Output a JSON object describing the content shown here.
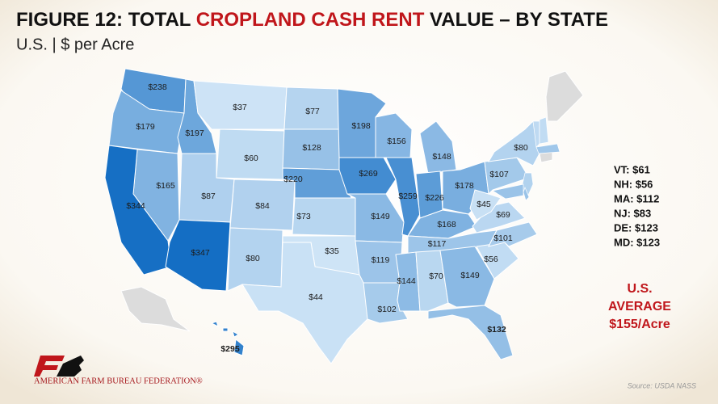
{
  "header": {
    "title_start": "FIGURE 12: TOTAL",
    "title_highlight": "CROPLAND CASH RENT",
    "title_end": "VALUE – BY STATE",
    "subtitle": "U.S. | $ per Acre"
  },
  "states": [
    {
      "value": 238,
      "label": "$238"
    },
    {
      "value": 179,
      "label": "$179"
    },
    {
      "value": 197,
      "label": "$197"
    },
    {
      "value": 37,
      "label": "$37"
    },
    {
      "value": 60,
      "label": "$60"
    },
    {
      "value": 165,
      "label": "$165"
    },
    {
      "value": 344,
      "label": "$344"
    },
    {
      "value": 87,
      "label": "$87"
    },
    {
      "value": 347,
      "label": "$347"
    },
    {
      "value": 84,
      "label": "$84"
    },
    {
      "value": 80,
      "label": "$80"
    },
    {
      "value": 77,
      "label": "$77"
    },
    {
      "value": 128,
      "label": "$128"
    },
    {
      "value": 220,
      "label": "$220"
    },
    {
      "value": 73,
      "label": "$73"
    },
    {
      "value": 35,
      "label": "$35"
    },
    {
      "value": 44,
      "label": "$44"
    },
    {
      "value": 198,
      "label": "$198"
    },
    {
      "value": 269,
      "label": "$269"
    },
    {
      "value": 149,
      "label": "$149"
    },
    {
      "value": 119,
      "label": "$119"
    },
    {
      "value": 102,
      "label": "$102"
    },
    {
      "value": 156,
      "label": "$156"
    },
    {
      "value": 259,
      "label": "$259"
    },
    {
      "value": 148,
      "label": "$148"
    },
    {
      "value": 226,
      "label": "$226"
    },
    {
      "value": 178,
      "label": "$178"
    },
    {
      "value": 168,
      "label": "$168"
    },
    {
      "value": 117,
      "label": "$117"
    },
    {
      "value": 144,
      "label": "$144"
    },
    {
      "value": 70,
      "label": "$70"
    },
    {
      "value": 149,
      "label": "$149"
    },
    {
      "value": 132,
      "label": "$132"
    },
    {
      "value": 56,
      "label": "$56"
    },
    {
      "value": 101,
      "label": "$101"
    },
    {
      "value": 69,
      "label": "$69"
    },
    {
      "value": 45,
      "label": "$45"
    },
    {
      "value": 107,
      "label": "$107"
    },
    {
      "value": 80,
      "label": "$80"
    },
    {
      "value": 295,
      "label": "$295"
    }
  ],
  "sidebar": [
    {
      "value": 61,
      "label": "VT: $61"
    },
    {
      "value": 56,
      "label": "NH: $56"
    },
    {
      "value": 112,
      "label": "MA: $112"
    },
    {
      "value": 83,
      "label": "NJ: $83"
    },
    {
      "value": 123,
      "label": "DE: $123"
    },
    {
      "value": 123,
      "label": "MD: $123"
    }
  ],
  "average": {
    "line1": "U.S.",
    "line2": "AVERAGE",
    "line3": "$155/Acre"
  },
  "logo": "AMERICAN FARM BUREAU FEDERATION®",
  "source": "Source: USDA NASS"
}
